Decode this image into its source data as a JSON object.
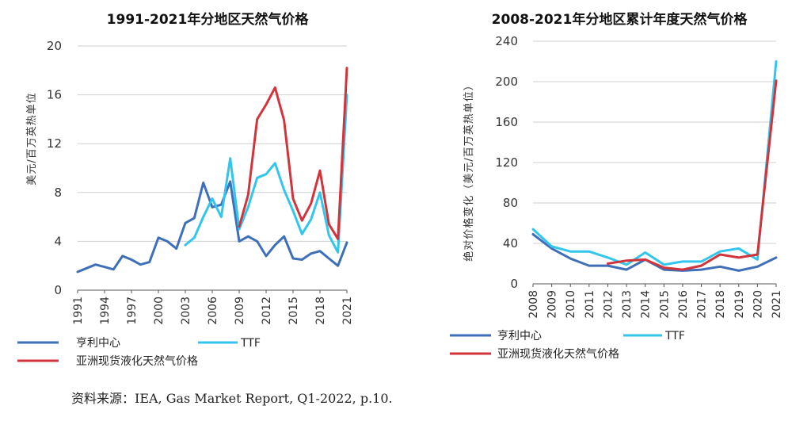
{
  "colors": {
    "henry_hub": "#3e6fb8",
    "ttf": "#33c6ec",
    "asia_lng": "#d2343c"
  },
  "legend": {
    "henry_hub": "亨利中心",
    "ttf": "TTF",
    "asia_lng": "亚洲现货液化天然气价格"
  },
  "source": "资料来源：IEA, Gas Market Report, Q1-2022, p.10.",
  "chart_data": [
    {
      "type": "line",
      "title": "1991-2021年分地区天然气价格",
      "ylabel": "美元/百万英热单位",
      "xlabel": "",
      "ylim": [
        0,
        20
      ],
      "yticks": [
        "0",
        "4",
        "8",
        "12",
        "16",
        "20"
      ],
      "xticks": [
        "1991",
        "1994",
        "1997",
        "2000",
        "2003",
        "2006",
        "2009",
        "2012",
        "2015",
        "2018",
        "2021"
      ],
      "grid": "horizontal",
      "legend_position": "bottom",
      "x": [
        1991,
        1992,
        1993,
        1994,
        1995,
        1996,
        1997,
        1998,
        1999,
        2000,
        2001,
        2002,
        2003,
        2004,
        2005,
        2006,
        2007,
        2008,
        2009,
        2010,
        2011,
        2012,
        2013,
        2014,
        2015,
        2016,
        2017,
        2018,
        2019,
        2020,
        2021
      ],
      "series": [
        {
          "name": "亨利中心",
          "key": "henry_hub",
          "values": [
            1.5,
            1.8,
            2.1,
            1.9,
            1.7,
            2.8,
            2.5,
            2.1,
            2.3,
            4.3,
            4.0,
            3.4,
            5.5,
            5.9,
            8.8,
            6.8,
            7.0,
            8.9,
            4.0,
            4.4,
            4.0,
            2.8,
            3.7,
            4.4,
            2.6,
            2.5,
            3.0,
            3.2,
            2.6,
            2.0,
            3.9
          ]
        },
        {
          "name": "TTF",
          "key": "ttf",
          "values": [
            null,
            null,
            null,
            null,
            null,
            null,
            null,
            null,
            null,
            null,
            null,
            null,
            3.7,
            4.3,
            6.0,
            7.5,
            6.0,
            10.8,
            5.0,
            6.8,
            9.2,
            9.5,
            10.4,
            8.2,
            6.5,
            4.6,
            5.8,
            8.0,
            4.5,
            3.1,
            16.0
          ]
        },
        {
          "name": "亚洲现货液化天然气价格",
          "key": "asia_lng",
          "values": [
            null,
            null,
            null,
            null,
            null,
            null,
            null,
            null,
            null,
            null,
            null,
            null,
            null,
            null,
            null,
            null,
            null,
            null,
            5.2,
            7.8,
            14.0,
            15.2,
            16.6,
            13.9,
            7.5,
            5.7,
            7.1,
            9.8,
            5.4,
            4.2,
            18.2
          ]
        }
      ]
    },
    {
      "type": "line",
      "title": "2008-2021年分地区累计年度天然气价格",
      "ylabel": "绝对价格变化（美元/百万英热单位）",
      "xlabel": "",
      "ylim": [
        0,
        240
      ],
      "yticks": [
        "0",
        "40",
        "80",
        "120",
        "160",
        "200",
        "240"
      ],
      "xticks": [
        "2008",
        "2009",
        "2010",
        "2011",
        "2012",
        "2013",
        "2014",
        "2015",
        "2016",
        "2017",
        "2018",
        "2019",
        "2020",
        "2021"
      ],
      "grid": "horizontal",
      "legend_position": "bottom",
      "x": [
        2008,
        2009,
        2010,
        2011,
        2012,
        2013,
        2014,
        2015,
        2016,
        2017,
        2018,
        2019,
        2020,
        2021
      ],
      "series": [
        {
          "name": "亨利中心",
          "key": "henry_hub",
          "values": [
            49,
            35,
            25,
            18,
            18,
            14,
            24,
            14,
            13,
            14,
            17,
            13,
            17,
            26
          ]
        },
        {
          "name": "TTF",
          "key": "ttf",
          "values": [
            54,
            37,
            32,
            32,
            26,
            19,
            31,
            19,
            22,
            22,
            32,
            35,
            24,
            220
          ]
        },
        {
          "name": "亚洲现货液化天然气价格",
          "key": "asia_lng",
          "values": [
            null,
            null,
            null,
            null,
            20,
            23,
            24,
            16,
            14,
            18,
            29,
            26,
            29,
            201
          ]
        }
      ]
    }
  ]
}
